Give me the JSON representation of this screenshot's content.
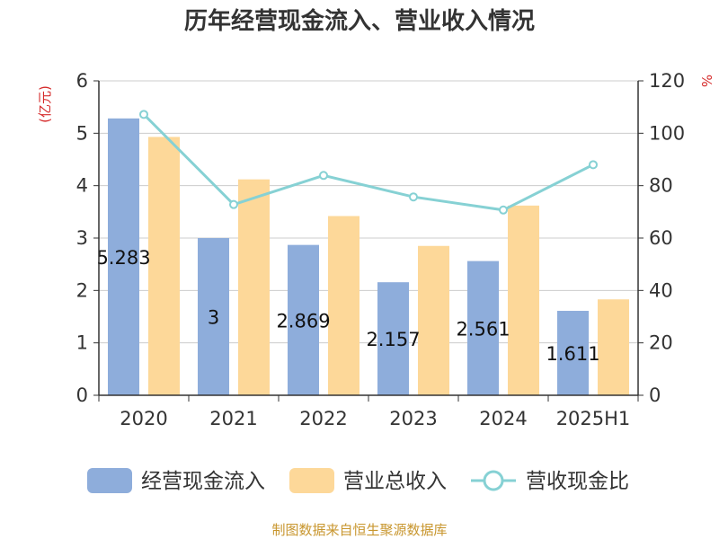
{
  "chart_data": {
    "type": "bar",
    "title": "历年经营现金流入、营业收入情况",
    "categories": [
      "2020",
      "2021",
      "2022",
      "2023",
      "2024",
      "2025H1"
    ],
    "y_left": {
      "unit": "(亿元)",
      "range": [
        0,
        6
      ],
      "ticks": [
        "0",
        "1",
        "2",
        "3",
        "4",
        "5",
        "6"
      ]
    },
    "y_right": {
      "unit": "%",
      "range": [
        0,
        120
      ],
      "ticks": [
        "0",
        "20",
        "40",
        "60",
        "80",
        "100",
        "120"
      ]
    },
    "grid": true,
    "legend_position": "bottom",
    "series": [
      {
        "name": "经营现金流入",
        "kind": "bar",
        "axis": "left",
        "color": "#8eaddb",
        "values": [
          5.283,
          3,
          2.869,
          2.157,
          2.561,
          1.611
        ],
        "labels": [
          "5.283",
          "3",
          "2.869",
          "2.157",
          "2.561",
          "1.611"
        ]
      },
      {
        "name": "营业总收入",
        "kind": "bar",
        "axis": "left",
        "color": "#fdd899",
        "values": [
          4.93,
          4.12,
          3.42,
          2.85,
          3.62,
          1.83
        ]
      },
      {
        "name": "营收现金比",
        "kind": "line",
        "axis": "right",
        "color": "#86d1d4",
        "values": [
          107.2,
          72.8,
          83.9,
          75.7,
          70.7,
          88.0
        ]
      }
    ]
  },
  "source_note": "制图数据来自恒生聚源数据库"
}
